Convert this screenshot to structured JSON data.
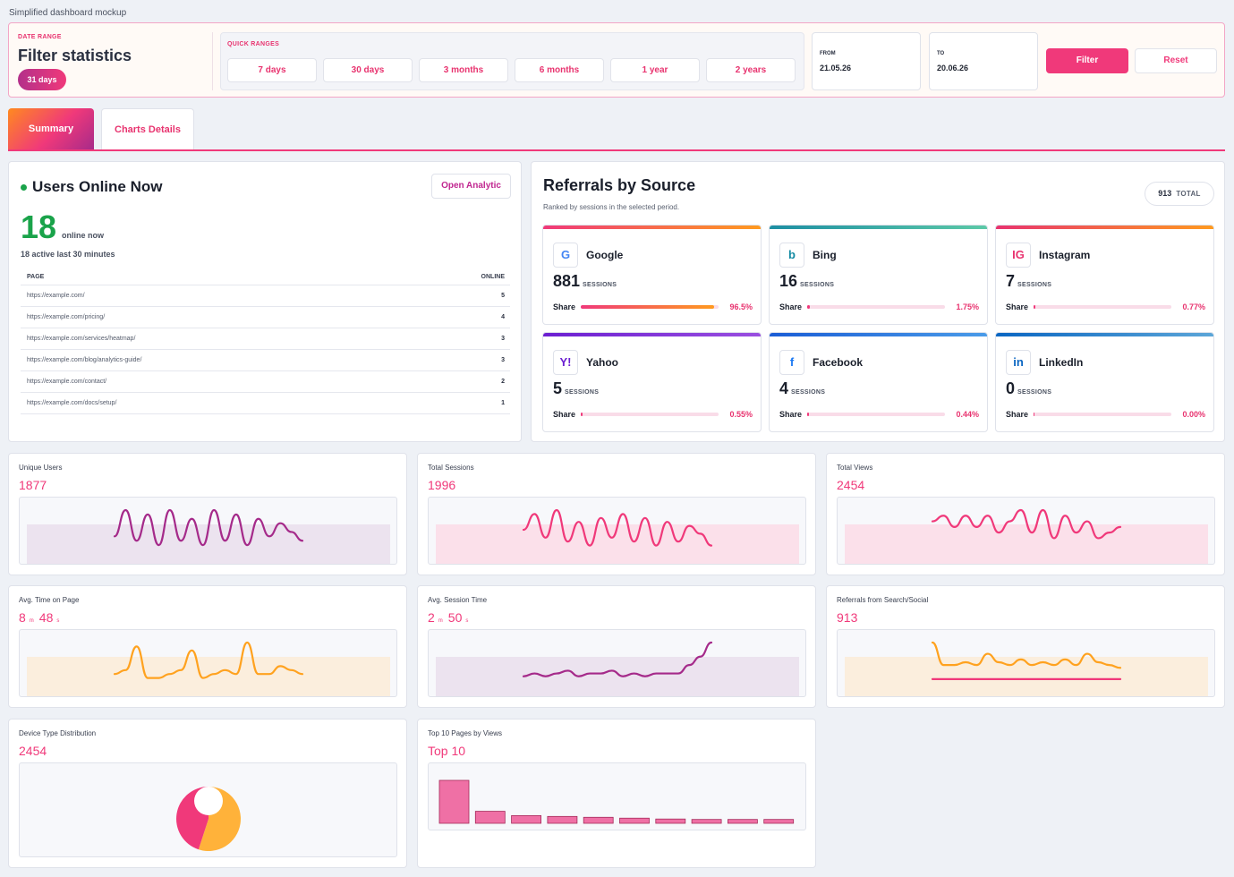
{
  "app_title": "Simplified dashboard mockup",
  "filter": {
    "date_range_label": "DATE RANGE",
    "title": "Filter statistics",
    "badge": "31 days",
    "quick_ranges_label": "QUICK RANGES",
    "quick_ranges": [
      "7 days",
      "30 days",
      "3 months",
      "6 months",
      "1 year",
      "2 years"
    ],
    "from_label": "FROM",
    "from_value": "21.05.26",
    "to_label": "TO",
    "to_value": "20.06.26",
    "filter_button": "Filter",
    "reset_button": "Reset"
  },
  "tabs": [
    {
      "label": "Summary",
      "active": true
    },
    {
      "label": "Charts Details",
      "active": false
    }
  ],
  "users_online": {
    "title": "Users Online Now",
    "button": "Open Analytic",
    "count": "18",
    "count_suffix": "online now",
    "active_text": "18 active last 30 minutes",
    "col_page": "PAGE",
    "col_online": "ONLINE",
    "rows": [
      {
        "page": "https://example.com/",
        "online": "5"
      },
      {
        "page": "https://example.com/pricing/",
        "online": "4"
      },
      {
        "page": "https://example.com/services/heatmap/",
        "online": "3"
      },
      {
        "page": "https://example.com/blog/analytics-guide/",
        "online": "3"
      },
      {
        "page": "https://example.com/contact/",
        "online": "2"
      },
      {
        "page": "https://example.com/docs/setup/",
        "online": "1"
      }
    ]
  },
  "referrals": {
    "title": "Referrals by Source",
    "subtitle": "Ranked by sessions in the selected period.",
    "total_value": "913",
    "total_label": "TOTAL",
    "sessions_label": "SESSIONS",
    "share_label": "Share",
    "sources": [
      {
        "name": "Google",
        "icon": "G",
        "icon_name": "google-icon",
        "icon_color": "#4285f4",
        "sessions": "881",
        "share": "96.5%",
        "share_fraction": 0.965,
        "bar_colors": [
          "#f0397a",
          "#ff9a1f"
        ]
      },
      {
        "name": "Bing",
        "icon": "b",
        "icon_name": "bing-icon",
        "icon_color": "#138aa3",
        "sessions": "16",
        "share": "1.75%",
        "share_fraction": 0.0175,
        "bar_colors": [
          "#1d8fa3",
          "#5cc9a7"
        ]
      },
      {
        "name": "Instagram",
        "icon": "IG",
        "icon_name": "instagram-icon",
        "icon_color": "#e8336f",
        "sessions": "7",
        "share": "0.77%",
        "share_fraction": 0.0077,
        "bar_colors": [
          "#e8336f",
          "#ff9a1f"
        ]
      },
      {
        "name": "Yahoo",
        "icon": "Y!",
        "icon_name": "yahoo-icon",
        "icon_color": "#6b1fd1",
        "sessions": "5",
        "share": "0.55%",
        "share_fraction": 0.0055,
        "bar_colors": [
          "#6b1fd1",
          "#9a4fe0"
        ]
      },
      {
        "name": "Facebook",
        "icon": "f",
        "icon_name": "facebook-icon",
        "icon_color": "#1877f2",
        "sessions": "4",
        "share": "0.44%",
        "share_fraction": 0.0044,
        "bar_colors": [
          "#1a5dd6",
          "#4a9be8"
        ]
      },
      {
        "name": "LinkedIn",
        "icon": "in",
        "icon_name": "linkedin-icon",
        "icon_color": "#0a66c2",
        "sessions": "0",
        "share": "0.00%",
        "share_fraction": 0.0,
        "bar_colors": [
          "#0a66c2",
          "#5ca6d8"
        ]
      }
    ]
  },
  "metrics": [
    {
      "title": "Unique Users",
      "value": "1877",
      "color": "#a52a8a",
      "band": "#ece3ef"
    },
    {
      "title": "Total Sessions",
      "value": "1996",
      "color": "#f0397a",
      "band": "#fbe0ea"
    },
    {
      "title": "Total Views",
      "value": "2454",
      "color": "#f0397a",
      "band": "#fbe0ea"
    },
    {
      "title": "Avg. Time on Page",
      "value_parts": [
        "8",
        "m",
        "48",
        "s"
      ],
      "color": "#ffa21f",
      "band": "#fbeedd"
    },
    {
      "title": "Avg. Session Time",
      "value_parts": [
        "2",
        "m",
        "50",
        "s"
      ],
      "color": "#a52a8a",
      "band": "#ece3ef"
    },
    {
      "title": "Referrals from Search/Social",
      "value": "913",
      "color": "#ffa21f",
      "color2": "#f0397a",
      "band": "#fbeedd"
    },
    {
      "title": "Device Type Distribution",
      "value": "2454",
      "pie_colors": [
        "#ffb23a",
        "#f0397a"
      ]
    },
    {
      "title": "Top 10 Pages by Views",
      "value": "Top 10",
      "bar_color": "#ef70a5",
      "bar_border": "#a52a5a"
    }
  ],
  "chart_data": [
    {
      "type": "line",
      "title": "Unique Users",
      "values": [
        3,
        9,
        2,
        8,
        1,
        9,
        2,
        7,
        1,
        9,
        2,
        8,
        1,
        7,
        3,
        6,
        4,
        2
      ]
    },
    {
      "type": "line",
      "title": "Total Sessions",
      "values": [
        5,
        9,
        3,
        10,
        2,
        7,
        1,
        8,
        3,
        9,
        2,
        8,
        1,
        7,
        2,
        6,
        4,
        1
      ]
    },
    {
      "type": "line",
      "title": "Total Views",
      "values": [
        5,
        6,
        4,
        6,
        4,
        6,
        3,
        5,
        7,
        3,
        7,
        2,
        6,
        3,
        5,
        2,
        3,
        4
      ]
    },
    {
      "type": "line",
      "title": "Avg. Time on Page",
      "values": [
        2,
        3,
        9,
        1,
        1,
        2,
        3,
        8,
        1,
        2,
        3,
        2,
        10,
        2,
        2,
        4,
        3,
        2
      ]
    },
    {
      "type": "line",
      "title": "Avg. Session Time",
      "values": [
        2,
        3,
        2,
        3,
        4,
        2,
        3,
        3,
        4,
        2,
        3,
        2,
        3,
        3,
        3,
        6,
        9,
        14
      ]
    },
    {
      "type": "line",
      "title": "Referrals from Search/Social",
      "series": [
        {
          "values": [
            14,
            6,
            6,
            7,
            6,
            10,
            7,
            6,
            8,
            6,
            7,
            6,
            8,
            6,
            10,
            7,
            6,
            5
          ]
        },
        {
          "values": [
            1,
            1,
            1,
            1,
            1,
            1,
            1,
            1,
            1,
            1,
            1,
            1,
            1,
            1,
            1,
            1,
            1,
            1
          ]
        }
      ]
    },
    {
      "type": "pie",
      "title": "Device Type Distribution",
      "values": [
        55,
        45
      ]
    },
    {
      "type": "bar",
      "title": "Top 10 Pages by Views",
      "values": [
        100,
        28,
        18,
        16,
        14,
        12,
        10,
        9,
        9,
        9
      ]
    }
  ]
}
